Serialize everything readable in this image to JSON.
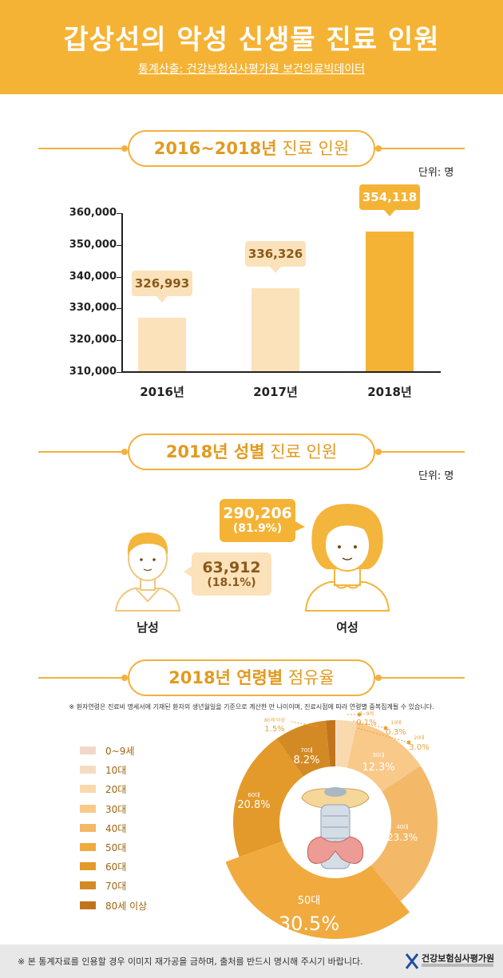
{
  "header": {
    "title": "갑상선의 악성 신생물 진료 인원",
    "source": "통계산출: 건강보험심사평가원 보건의료빅데이터"
  },
  "section1": {
    "title_highlight": "2016~2018년",
    "title_rest": " 진료 인원",
    "unit": "단위: 명"
  },
  "chart_data": {
    "type": "bar",
    "categories": [
      "2016년",
      "2017년",
      "2018년"
    ],
    "values": [
      326993,
      336326,
      354118
    ],
    "value_labels": [
      "326,993",
      "336,326",
      "354,118"
    ],
    "ylim": [
      310000,
      360000
    ],
    "yticks": [
      "310,000",
      "320,000",
      "330,000",
      "340,000",
      "350,000",
      "360,000"
    ],
    "colors": [
      "#fbe2bb",
      "#fbe2bb",
      "#f5b335"
    ],
    "title": "",
    "xlabel": "",
    "ylabel": ""
  },
  "section2": {
    "title_highlight": "2018년 성별",
    "title_rest": " 진료 인원",
    "unit": "단위: 명",
    "male": {
      "label": "남성",
      "value": "63,912",
      "percent": "(18.1%)"
    },
    "female": {
      "label": "여성",
      "value": "290,206",
      "percent": "(81.9%)"
    }
  },
  "section3": {
    "title_highlight": "2018년 연령별",
    "title_rest": " 점유율",
    "note": "※ 환자연령은 진료비 명세서에 기재된 환자의 생년월일을 기준으로 계산한 만 나이이며, 진료시점에 따라 연령별 중복집계될 수 있습니다.",
    "legend": [
      "0~9세",
      "10대",
      "20대",
      "30대",
      "40대",
      "50대",
      "60대",
      "70대",
      "80세 이상"
    ],
    "colors": [
      "#f1d9c8",
      "#f4dcc2",
      "#f9d9ad",
      "#f9c98a",
      "#f3b868",
      "#f0aa3e",
      "#e39a2a",
      "#d48a24",
      "#c2741c"
    ],
    "slices": [
      {
        "label": "0~9세",
        "pct": "0.1%",
        "value": 0.1
      },
      {
        "label": "10대",
        "pct": "0.3%",
        "value": 0.3
      },
      {
        "label": "20대",
        "pct": "3.0%",
        "value": 3.0
      },
      {
        "label": "30대",
        "pct": "12.3%",
        "value": 12.3
      },
      {
        "label": "40대",
        "pct": "23.3%",
        "value": 23.3
      },
      {
        "label": "50대",
        "pct": "30.5%",
        "value": 30.5
      },
      {
        "label": "60대",
        "pct": "20.8%",
        "value": 20.8
      },
      {
        "label": "70대",
        "pct": "8.2%",
        "value": 8.2
      },
      {
        "label": "80세 이상",
        "pct": "1.5%",
        "value": 1.5
      }
    ]
  },
  "footer": {
    "text": "※ 본 통계자료를 인용할 경우 이미지 재가공을 금하며, 출처를 반드시 명시해 주시기 바랍니다.",
    "org": "건강보험심사평가원"
  }
}
